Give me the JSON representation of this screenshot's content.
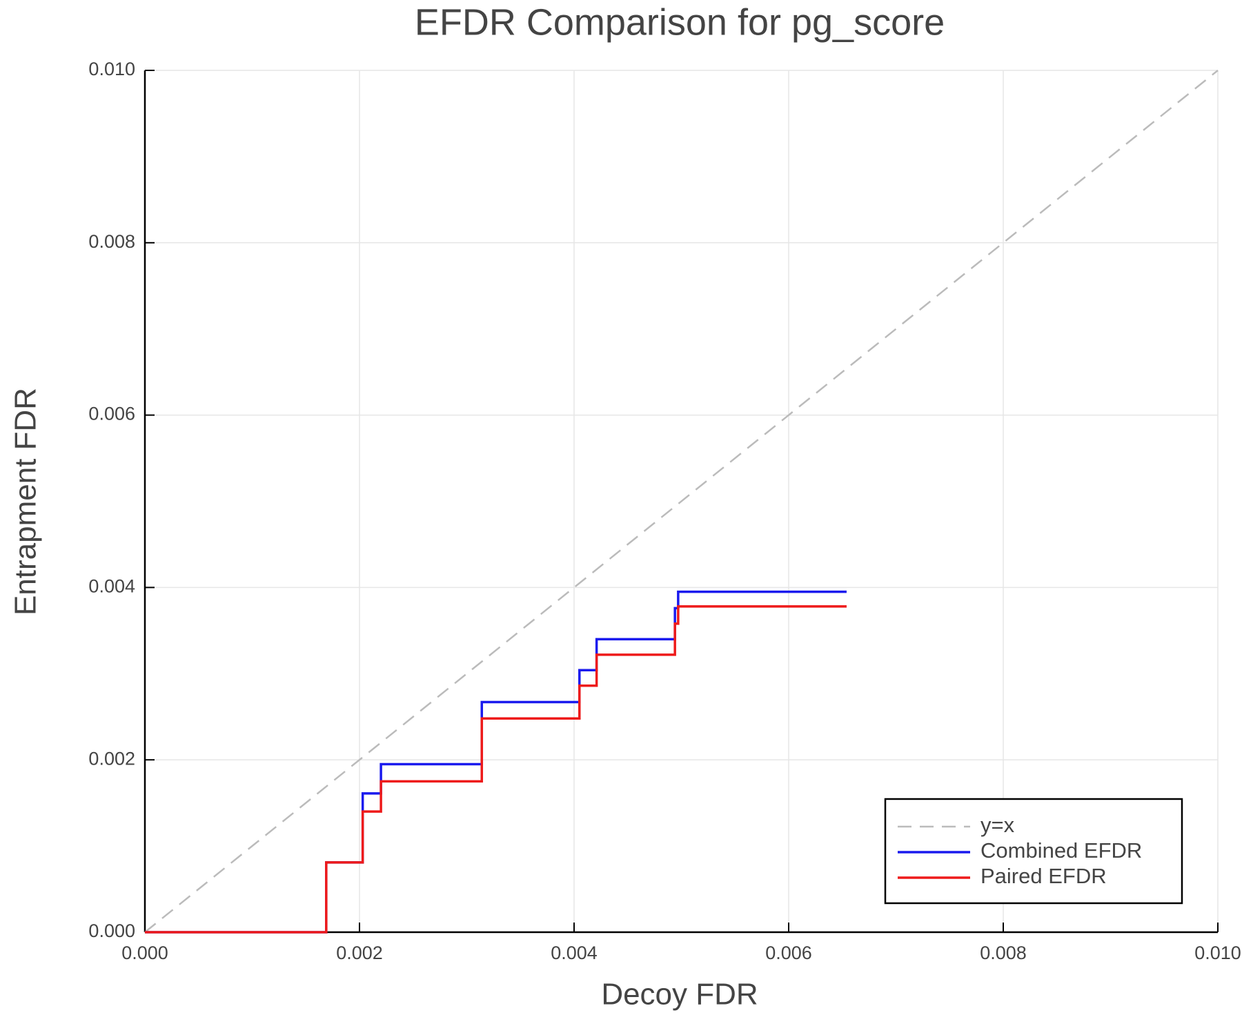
{
  "chart_data": {
    "type": "line",
    "title": "EFDR Comparison for pg_score",
    "x_label": "Decoy FDR",
    "y_label": "Entrapment FDR",
    "xlim": [
      0,
      0.01
    ],
    "ylim": [
      0,
      0.01
    ],
    "xticks": [
      {
        "value": 0,
        "label": "0.000"
      },
      0.002,
      0.004,
      0.006,
      0.008,
      {
        "value": 0.01,
        "label": "0.010"
      }
    ],
    "yticks": [
      {
        "value": 0,
        "label": "0.000"
      },
      0.002,
      0.004,
      0.006,
      0.008,
      {
        "value": 0.01,
        "label": "0.010"
      }
    ],
    "grid": true,
    "legend": "lower right",
    "series": [
      {
        "name": "y=x",
        "color": "#bbbbbb",
        "dash": true,
        "x": [
          0,
          0.01
        ],
        "values": [
          0,
          0.01
        ]
      },
      {
        "name": "Combined EFDR",
        "color": "#1a1aee",
        "x": [
          0,
          0.00169,
          0.00169,
          0.00203,
          0.00203,
          0.0022,
          0.0022,
          0.00314,
          0.00314,
          0.00405,
          0.00405,
          0.00421,
          0.00421,
          0.00494,
          0.00494,
          0.00497,
          0.00497,
          0.00654
        ],
        "values": [
          0,
          0,
          0.00081,
          0.00081,
          0.00161,
          0.00161,
          0.00195,
          0.00195,
          0.00267,
          0.00267,
          0.00304,
          0.00304,
          0.0034,
          0.0034,
          0.00376,
          0.00376,
          0.00395,
          0.00395
        ]
      },
      {
        "name": "Paired EFDR",
        "color": "#ee1a1a",
        "x": [
          0,
          0.00169,
          0.00169,
          0.00203,
          0.00203,
          0.0022,
          0.0022,
          0.00314,
          0.00314,
          0.00405,
          0.00405,
          0.00421,
          0.00421,
          0.00494,
          0.00494,
          0.00497,
          0.00497,
          0.00654
        ],
        "values": [
          0,
          0,
          0.00081,
          0.00081,
          0.0014,
          0.0014,
          0.00175,
          0.00175,
          0.00248,
          0.00248,
          0.00286,
          0.00286,
          0.00322,
          0.00322,
          0.00358,
          0.00358,
          0.00378,
          0.00378
        ]
      }
    ]
  }
}
